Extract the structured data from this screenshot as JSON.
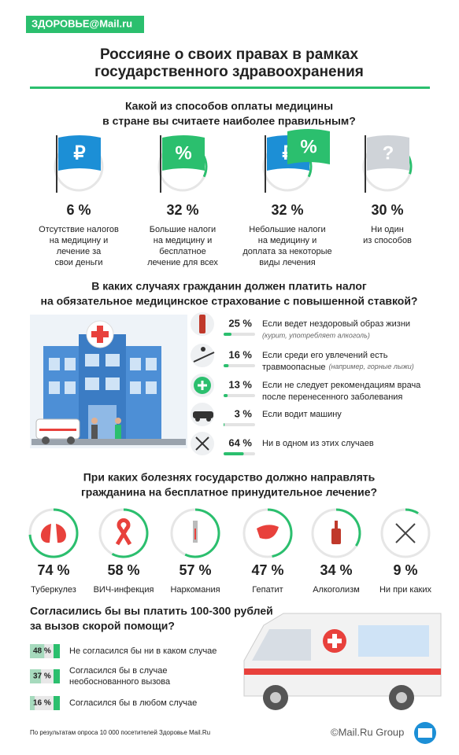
{
  "header": {
    "logo": "ЗДОРОВЬЕ@Mail.ru",
    "title": [
      "Россияне о своих правах в рамках",
      "государственного здравоохранения"
    ]
  },
  "payment": {
    "question": [
      "Какой из способов оплаты медицины",
      "в стране вы считаете наиболее правильным?"
    ],
    "options": [
      {
        "symbols": [
          "₽"
        ],
        "percent": {
          "value": 6,
          "label": "6 %"
        },
        "description": [
          "Отсутствие налогов",
          "на медицину и",
          "лечение за",
          "свои деньги"
        ]
      },
      {
        "symbols": [
          "%"
        ],
        "percent": {
          "value": 32,
          "label": "32 %"
        },
        "description": [
          "Большие налоги",
          "на медицину и",
          "бесплатное",
          "лечение для всех"
        ]
      },
      {
        "symbols": [
          "₽",
          "%"
        ],
        "percent": {
          "value": 32,
          "label": "32 %"
        },
        "description": [
          "Небольшие налоги",
          "на медицину и",
          "доплата за некоторые",
          "виды лечения"
        ]
      },
      {
        "symbols": [
          "?"
        ],
        "percent": {
          "value": 30,
          "label": "30 %"
        },
        "description": [
          "Ни один",
          "из способов"
        ]
      }
    ]
  },
  "tax": {
    "question": [
      "В каких случаях гражданин должен платить налог",
      "на обязательное медицинское страхование с повышенной ставкой?"
    ],
    "items": [
      {
        "percent": {
          "value": 25,
          "label": "25 %"
        },
        "lines": [
          "Если ведет нездоровый образ жизни"
        ],
        "note": "(курит, употребляет алкоголь)"
      },
      {
        "percent": {
          "value": 16,
          "label": "16 %"
        },
        "lines": [
          "Если среди его увлечений есть",
          "травмоопасные"
        ],
        "note": "(например, горные лыжи)"
      },
      {
        "percent": {
          "value": 13,
          "label": "13 %"
        },
        "lines": [
          "Если не следует рекомендациям врача",
          "после перенесенного заболевания"
        ]
      },
      {
        "percent": {
          "value": 3,
          "label": "3 %"
        },
        "lines": [
          "Если водит машину"
        ]
      },
      {
        "percent": {
          "value": 64,
          "label": "64 %"
        },
        "lines": [
          "Ни в одном из этих случаев"
        ]
      }
    ]
  },
  "treatment": {
    "question": [
      "При каких болезнях государство должно направлять",
      "гражданина на бесплатное принудительное лечение?"
    ],
    "items": [
      {
        "percent": {
          "value": 74,
          "label": "74 %"
        },
        "label": "Туберкулез"
      },
      {
        "percent": {
          "value": 58,
          "label": "58 %"
        },
        "label": "ВИЧ-инфекция"
      },
      {
        "percent": {
          "value": 57,
          "label": "57 %"
        },
        "label": "Наркомания"
      },
      {
        "percent": {
          "value": 47,
          "label": "47 %"
        },
        "label": "Гепатит"
      },
      {
        "percent": {
          "value": 34,
          "label": "34 %"
        },
        "label": "Алкоголизм"
      },
      {
        "percent": {
          "value": 9,
          "label": "9 %"
        },
        "label": "Ни при каких"
      }
    ]
  },
  "ambulance": {
    "question": [
      "Согласились бы вы платить 100-300 рублей",
      "за вызов скорой помощи?"
    ],
    "items": [
      {
        "percent": {
          "value": 48,
          "label": "48 %"
        },
        "lines": [
          "Не согласился бы ни в каком случае"
        ]
      },
      {
        "percent": {
          "value": 37,
          "label": "37 %"
        },
        "lines": [
          "Согласился бы в случае",
          "необоснованного вызова"
        ]
      },
      {
        "percent": {
          "value": 16,
          "label": "16 %"
        },
        "lines": [
          "Согласился бы в любом случае"
        ]
      }
    ]
  },
  "footer": {
    "note": "По результатам опроса 10 000 посетителей Здоровье Mail.Ru",
    "copyright": "©Mail.Ru Group"
  }
}
